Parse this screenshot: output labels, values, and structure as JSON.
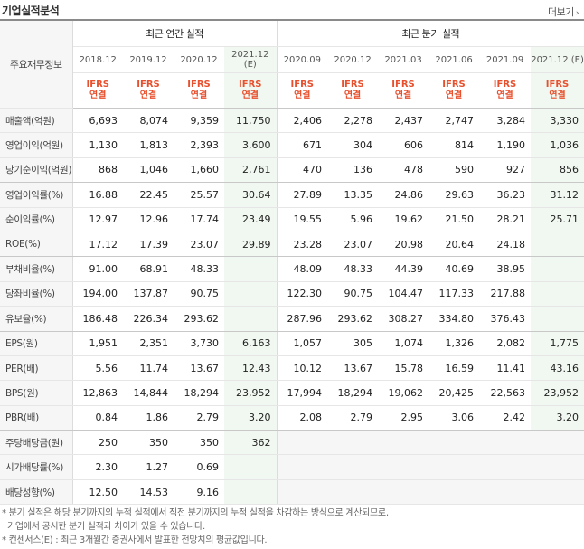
{
  "header": {
    "title": "기업실적분석",
    "more_label": "더보기"
  },
  "table": {
    "label_header": "주요재무정보",
    "annual_group": "최근 연간 실적",
    "quarter_group": "최근 분기 실적",
    "periods": [
      "2018.12",
      "2019.12",
      "2020.12",
      "2021.12 (E)",
      "2020.09",
      "2020.12",
      "2021.03",
      "2021.06",
      "2021.09",
      "2021.12 (E)"
    ],
    "ifrs_line1": "IFRS",
    "ifrs_line2": "연결",
    "rows": [
      {
        "label": "매출액(억원)",
        "values": [
          "6,693",
          "8,074",
          "9,359",
          "11,750",
          "2,406",
          "2,278",
          "2,437",
          "2,747",
          "3,284",
          "3,330"
        ]
      },
      {
        "label": "영업이익(억원)",
        "values": [
          "1,130",
          "1,813",
          "2,393",
          "3,600",
          "671",
          "304",
          "606",
          "814",
          "1,190",
          "1,036"
        ]
      },
      {
        "label": "당기순이익(억원)",
        "values": [
          "868",
          "1,046",
          "1,660",
          "2,761",
          "470",
          "136",
          "478",
          "590",
          "927",
          "856"
        ]
      },
      {
        "label": "영업이익률(%)",
        "values": [
          "16.88",
          "22.45",
          "25.57",
          "30.64",
          "27.89",
          "13.35",
          "24.86",
          "29.63",
          "36.23",
          "31.12"
        ]
      },
      {
        "label": "순이익률(%)",
        "values": [
          "12.97",
          "12.96",
          "17.74",
          "23.49",
          "19.55",
          "5.96",
          "19.62",
          "21.50",
          "28.21",
          "25.71"
        ]
      },
      {
        "label": "ROE(%)",
        "values": [
          "17.12",
          "17.39",
          "23.07",
          "29.89",
          "23.28",
          "23.07",
          "20.98",
          "20.64",
          "24.18",
          ""
        ]
      },
      {
        "label": "부채비율(%)",
        "values": [
          "91.00",
          "68.91",
          "48.33",
          "",
          "48.09",
          "48.33",
          "44.39",
          "40.69",
          "38.95",
          ""
        ]
      },
      {
        "label": "당좌비율(%)",
        "values": [
          "194.00",
          "137.87",
          "90.75",
          "",
          "122.30",
          "90.75",
          "104.47",
          "117.33",
          "217.88",
          ""
        ]
      },
      {
        "label": "유보율(%)",
        "values": [
          "186.48",
          "226.34",
          "293.62",
          "",
          "287.96",
          "293.62",
          "308.27",
          "334.80",
          "376.43",
          ""
        ]
      },
      {
        "label": "EPS(원)",
        "values": [
          "1,951",
          "2,351",
          "3,730",
          "6,163",
          "1,057",
          "305",
          "1,074",
          "1,326",
          "2,082",
          "1,775"
        ]
      },
      {
        "label": "PER(배)",
        "values": [
          "5.56",
          "11.74",
          "13.67",
          "12.43",
          "10.12",
          "13.67",
          "15.78",
          "16.59",
          "11.41",
          "43.16"
        ]
      },
      {
        "label": "BPS(원)",
        "values": [
          "12,863",
          "14,844",
          "18,294",
          "23,952",
          "17,994",
          "18,294",
          "19,062",
          "20,425",
          "22,563",
          "23,952"
        ]
      },
      {
        "label": "PBR(배)",
        "values": [
          "0.84",
          "1.86",
          "2.79",
          "3.20",
          "2.08",
          "2.79",
          "2.95",
          "3.06",
          "2.42",
          "3.20"
        ]
      },
      {
        "label": "주당배당금(원)",
        "values": [
          "250",
          "350",
          "350",
          "362",
          "",
          "",
          "",
          "",
          "",
          ""
        ]
      },
      {
        "label": "시가배당률(%)",
        "values": [
          "2.30",
          "1.27",
          "0.69",
          "",
          "",
          "",
          "",
          "",
          "",
          ""
        ]
      },
      {
        "label": "배당성향(%)",
        "values": [
          "12.50",
          "14.53",
          "9.16",
          "",
          "",
          "",
          "",
          "",
          "",
          ""
        ]
      }
    ]
  },
  "notes": [
    "* 분기 실적은 해당 분기까지의 누적 실적에서 직전 분기까지의 누적 실적을 차감하는 방식으로 계산되므로,",
    "기업에서 공시한 분기 실적과 차이가 있을 수 있습니다.",
    "* 컨센서스(E) : 최근 3개월간 증권사에서 발표한 전망치의 평균값입니다."
  ]
}
